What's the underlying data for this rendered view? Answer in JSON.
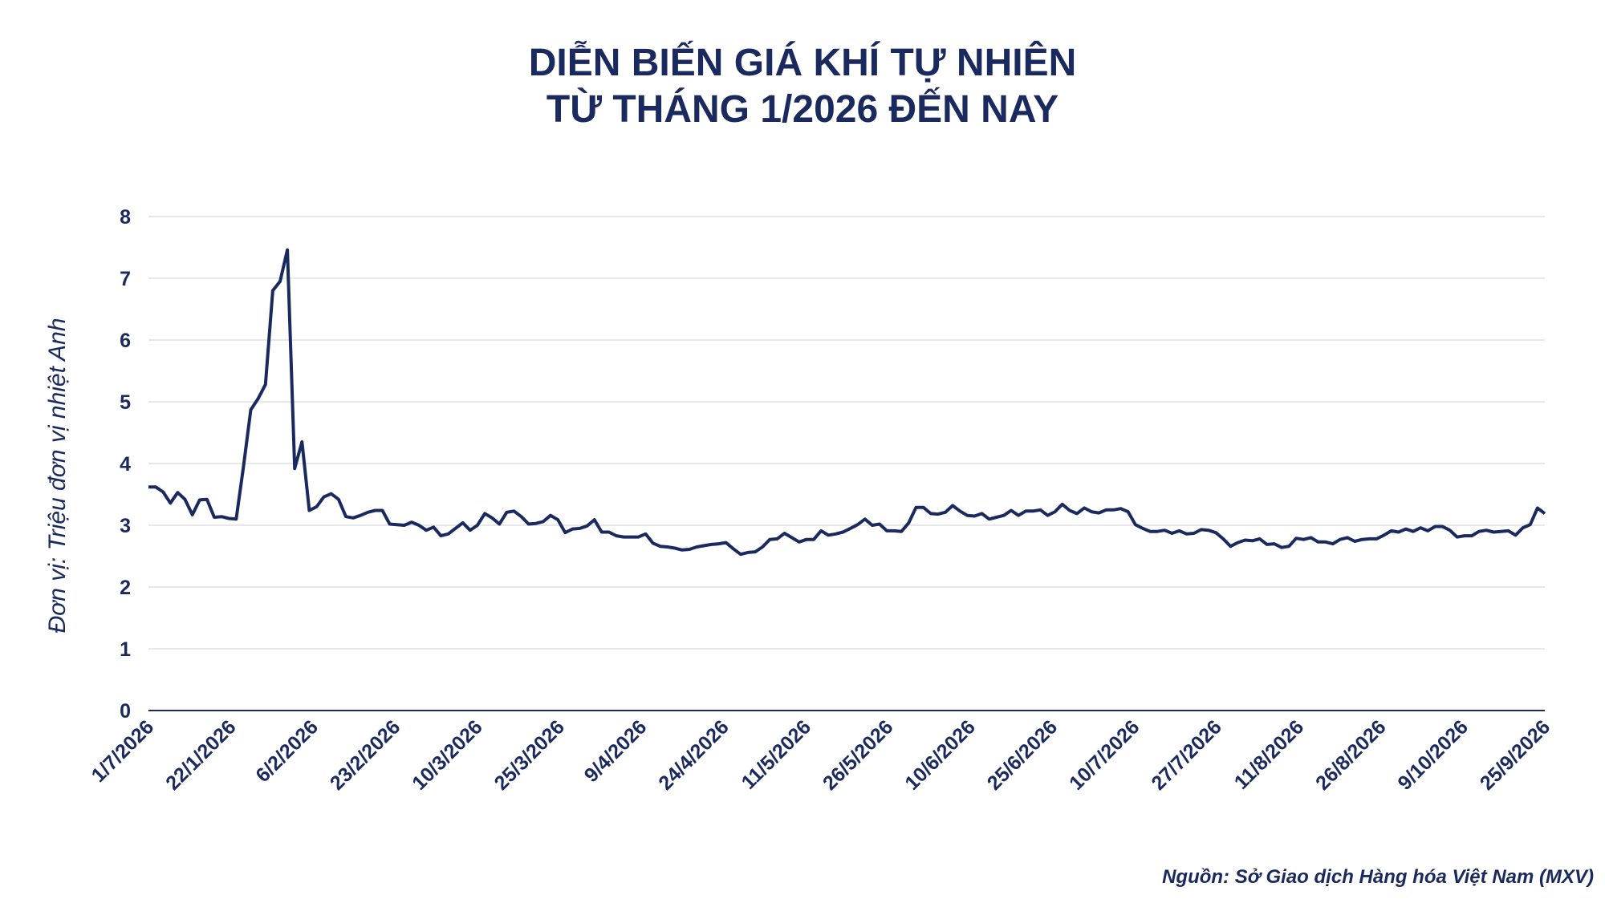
{
  "chart_data": {
    "type": "line",
    "title_line1": "DIỄN BIẾN GIÁ KHÍ TỰ NHIÊN",
    "title_line2": "TỪ THÁNG 1/2026 ĐẾN NAY",
    "ylabel": "Đơn vị: Triệu đơn vị nhiệt Anh",
    "xlabel": "",
    "source": "Nguồn: Sở Giao dịch Hàng hóa Việt Nam (MXV)",
    "ylim": [
      0,
      8
    ],
    "yticks": [
      0,
      1,
      2,
      3,
      4,
      5,
      6,
      7,
      8
    ],
    "grid": true,
    "color": "#1b2a5e",
    "grid_color": "#d9d9d9",
    "xtick_labels": [
      "1/7/2026",
      "22/1/2026",
      "6/2/2026",
      "23/2/2026",
      "10/3/2026",
      "25/3/2026",
      "9/4/2026",
      "24/4/2026",
      "11/5/2026",
      "26/5/2026",
      "10/6/2026",
      "25/6/2026",
      "10/7/2026",
      "27/7/2026",
      "11/8/2026",
      "26/8/2026",
      "9/10/2026",
      "25/9/2026"
    ],
    "series": [
      {
        "values": [
          3.62,
          3.62,
          3.54,
          3.36,
          3.53,
          3.42,
          3.17,
          3.41,
          3.42,
          3.13,
          3.14,
          3.11,
          3.1,
          3.95,
          4.87,
          5.05,
          5.28,
          6.8,
          6.95,
          7.46,
          3.92,
          4.35,
          3.24,
          3.3,
          3.46,
          3.51,
          3.42,
          3.14,
          3.12,
          3.16,
          3.21,
          3.24,
          3.24,
          3.02,
          3.01,
          3.0,
          3.05,
          3.0,
          2.92,
          2.97,
          2.83,
          2.86,
          2.95,
          3.04,
          2.92,
          3.0,
          3.19,
          3.12,
          3.02,
          3.21,
          3.23,
          3.14,
          3.02,
          3.03,
          3.06,
          3.16,
          3.09,
          2.88,
          2.94,
          2.95,
          2.99,
          3.09,
          2.89,
          2.89,
          2.83,
          2.81,
          2.81,
          2.81,
          2.86,
          2.71,
          2.66,
          2.65,
          2.63,
          2.6,
          2.61,
          2.65,
          2.67,
          2.69,
          2.7,
          2.72,
          2.62,
          2.53,
          2.56,
          2.57,
          2.65,
          2.77,
          2.78,
          2.87,
          2.8,
          2.73,
          2.77,
          2.77,
          2.91,
          2.84,
          2.86,
          2.89,
          2.95,
          3.01,
          3.1,
          3.0,
          3.02,
          2.91,
          2.91,
          2.9,
          3.04,
          3.29,
          3.29,
          3.19,
          3.18,
          3.21,
          3.32,
          3.23,
          3.16,
          3.15,
          3.19,
          3.1,
          3.13,
          3.16,
          3.24,
          3.16,
          3.23,
          3.23,
          3.25,
          3.16,
          3.22,
          3.34,
          3.24,
          3.19,
          3.28,
          3.22,
          3.2,
          3.25,
          3.25,
          3.27,
          3.22,
          3.01,
          2.95,
          2.9,
          2.9,
          2.92,
          2.87,
          2.91,
          2.86,
          2.87,
          2.93,
          2.92,
          2.88,
          2.78,
          2.66,
          2.72,
          2.76,
          2.75,
          2.78,
          2.69,
          2.7,
          2.64,
          2.66,
          2.79,
          2.77,
          2.8,
          2.73,
          2.73,
          2.7,
          2.77,
          2.8,
          2.74,
          2.77,
          2.78,
          2.78,
          2.84,
          2.91,
          2.89,
          2.94,
          2.9,
          2.96,
          2.91,
          2.98,
          2.98,
          2.92,
          2.81,
          2.83,
          2.83,
          2.9,
          2.92,
          2.89,
          2.9,
          2.91,
          2.84,
          2.96,
          3.01,
          3.28,
          3.19
        ]
      }
    ]
  }
}
